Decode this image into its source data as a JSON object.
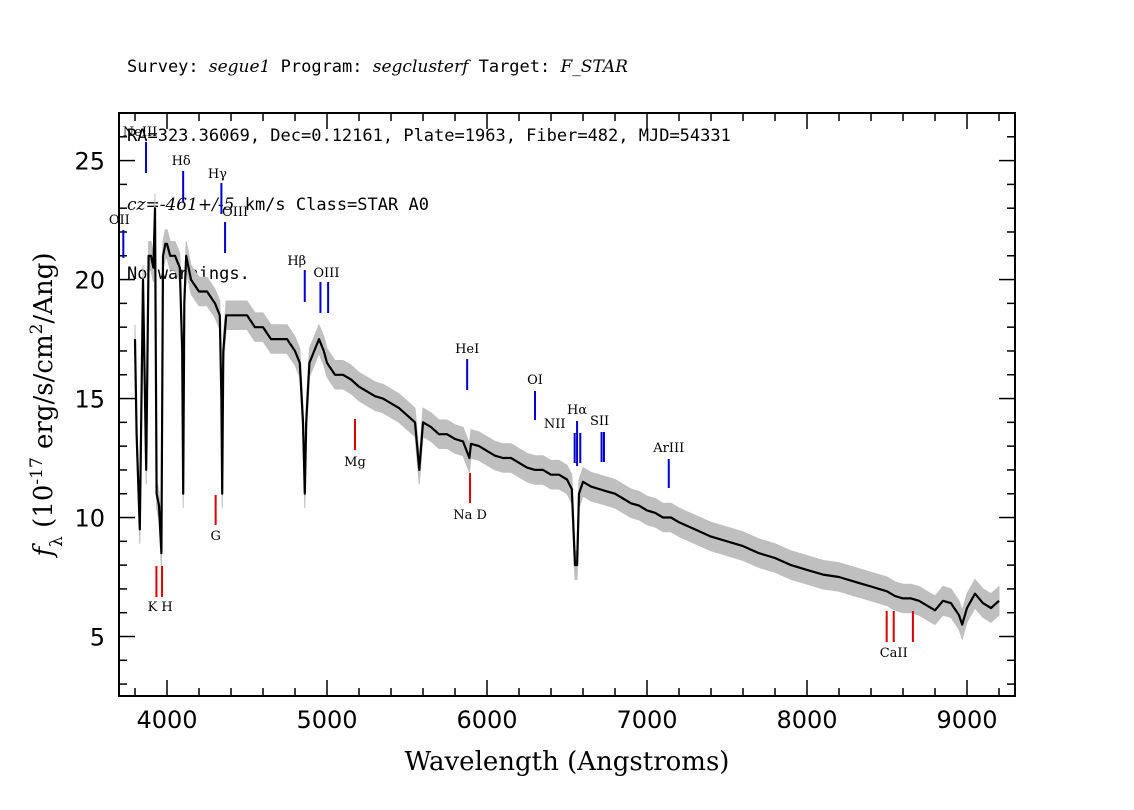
{
  "header": {
    "line1": {
      "survey_label": "Survey: ",
      "survey": "segue1",
      "program_label": " Program: ",
      "program": "segclusterf",
      "target_label": " Target: ",
      "target": "F_STAR"
    },
    "line2": "RA=323.36069, Dec=0.12161, Plate=1963, Fiber=482, MJD=54331",
    "line3": {
      "cz_label": "cz=",
      "cz": "-461+/-5",
      "rest": " km/s Class=STAR A0"
    },
    "line4": "No warnings."
  },
  "colors": {
    "spectrum": "#000000",
    "error_band": "#bfbfbf",
    "emission_line": "#0000cc",
    "absorption_line": "#dd0000"
  },
  "chart_data": {
    "type": "line",
    "xlabel": "Wavelength (Angstroms)",
    "ylabel": "f_λ (10^-17 erg/s/cm^2/Ang)",
    "xlim": [
      3700,
      9300
    ],
    "ylim": [
      2.5,
      27
    ],
    "xticks": [
      4000,
      5000,
      6000,
      7000,
      8000,
      9000
    ],
    "yticks": [
      5,
      10,
      15,
      20,
      25
    ],
    "grid": false,
    "series": [
      {
        "x": [
          3800,
          3810,
          3830,
          3850,
          3870,
          3885,
          3900,
          3915,
          3925,
          3935,
          3950,
          3965,
          3975,
          3990,
          4000,
          4020,
          4050,
          4080,
          4095,
          4101,
          4108,
          4120,
          4150,
          4200,
          4250,
          4300,
          4330,
          4340,
          4345,
          4352,
          4370,
          4400,
          4450,
          4500,
          4550,
          4600,
          4650,
          4700,
          4750,
          4800,
          4830,
          4850,
          4861,
          4870,
          4890,
          4920,
          4950,
          4980,
          5000,
          5050,
          5100,
          5150,
          5200,
          5250,
          5300,
          5350,
          5400,
          5450,
          5500,
          5550,
          5577,
          5600,
          5650,
          5700,
          5750,
          5800,
          5850,
          5890,
          5900,
          5950,
          6000,
          6050,
          6100,
          6150,
          6200,
          6250,
          6300,
          6350,
          6400,
          6450,
          6500,
          6530,
          6550,
          6563,
          6575,
          6600,
          6650,
          6700,
          6750,
          6800,
          6850,
          6900,
          6950,
          7000,
          7050,
          7100,
          7150,
          7200,
          7300,
          7400,
          7500,
          7600,
          7700,
          7800,
          7900,
          8000,
          8100,
          8200,
          8300,
          8350,
          8400,
          8450,
          8500,
          8550,
          8600,
          8650,
          8700,
          8750,
          8800,
          8850,
          8900,
          8950,
          8970,
          9000,
          9050,
          9100,
          9150,
          9200
        ],
        "y": [
          17.5,
          13.5,
          9.5,
          20,
          12,
          21,
          21,
          20.5,
          23,
          11,
          10.5,
          8.5,
          21,
          21.5,
          21.5,
          21,
          21,
          20.5,
          17,
          11,
          19,
          21,
          20,
          19.5,
          19.5,
          19,
          18.5,
          15,
          11,
          17,
          18.5,
          18.5,
          18.5,
          18.5,
          18,
          18,
          17.5,
          17.5,
          17.5,
          17,
          16.5,
          14,
          11,
          14,
          16.5,
          17,
          17.5,
          17,
          16.5,
          16,
          16,
          15.8,
          15.5,
          15.3,
          15.1,
          15,
          14.8,
          14.6,
          14.3,
          14,
          12,
          14,
          13.8,
          13.5,
          13.5,
          13.3,
          13.2,
          12.5,
          13.1,
          13,
          12.8,
          12.6,
          12.5,
          12.5,
          12.3,
          12.1,
          12,
          12,
          11.8,
          11.8,
          11.6,
          11.2,
          8,
          8,
          11,
          11.5,
          11.3,
          11.2,
          11.1,
          11,
          10.8,
          10.6,
          10.5,
          10.3,
          10.2,
          10,
          10,
          9.8,
          9.5,
          9.2,
          9,
          8.8,
          8.5,
          8.3,
          8,
          7.8,
          7.6,
          7.5,
          7.3,
          7.2,
          7.1,
          7,
          6.9,
          6.7,
          6.6,
          6.6,
          6.5,
          6.3,
          6.1,
          6.5,
          6.4,
          5.9,
          5.5,
          6.2,
          6.8,
          6.4,
          6.2,
          6.5
        ]
      }
    ],
    "emission_lines": [
      {
        "name": "OII",
        "x": 3727
      },
      {
        "name": "NeIII",
        "x": 3869
      },
      {
        "name": "Hδ",
        "x": 4101
      },
      {
        "name": "Hγ",
        "x": 4340
      },
      {
        "name": "OIII",
        "x": 4363
      },
      {
        "name": "Hβ",
        "x": 4861
      },
      {
        "name": "OIII",
        "x": 4959
      },
      {
        "name": "OIII",
        "x": 5007
      },
      {
        "name": "HeI",
        "x": 5876
      },
      {
        "name": "OI",
        "x": 6300
      },
      {
        "name": "NII",
        "x": 6548
      },
      {
        "name": "Hα",
        "x": 6563
      },
      {
        "name": "NII",
        "x": 6583
      },
      {
        "name": "SII",
        "x": 6716
      },
      {
        "name": "SII",
        "x": 6731
      },
      {
        "name": "ArIII",
        "x": 7136
      }
    ],
    "absorption_lines": [
      {
        "name": "K",
        "x": 3934
      },
      {
        "name": "H",
        "x": 3969
      },
      {
        "name": "G",
        "x": 4304
      },
      {
        "name": "Mg",
        "x": 5175
      },
      {
        "name": "Na D",
        "x": 5894
      },
      {
        "name": "CaII",
        "x": 8498
      },
      {
        "name": "CaII",
        "x": 8542
      },
      {
        "name": "CaII",
        "x": 8662
      }
    ]
  }
}
